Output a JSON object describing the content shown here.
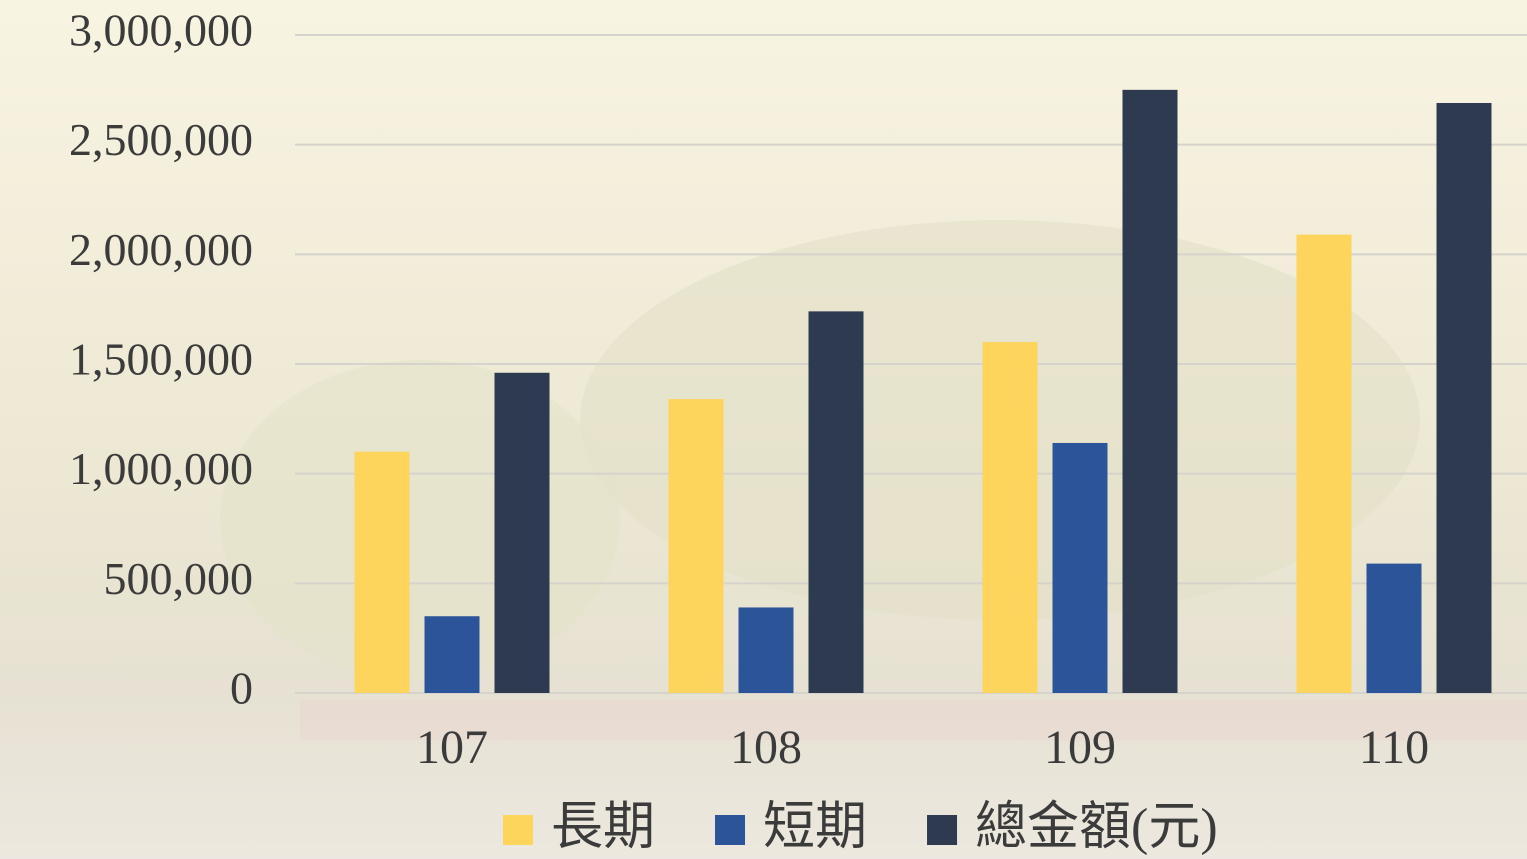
{
  "chart_data": {
    "type": "bar",
    "categories": [
      "107",
      "108",
      "109",
      "110"
    ],
    "series": [
      {
        "name": "長期",
        "color": "#fdd45c",
        "values": [
          1100000,
          1340000,
          1600000,
          2090000
        ]
      },
      {
        "name": "短期",
        "color": "#2c5499",
        "values": [
          350000,
          390000,
          1140000,
          590000
        ]
      },
      {
        "name": "總金額(元)",
        "color": "#2e3a50",
        "values": [
          1460000,
          1740000,
          2750000,
          2690000
        ]
      }
    ],
    "ylim": [
      0,
      3000000
    ],
    "yticks": [
      0,
      {
        "value": 500000,
        "label": "500,000"
      },
      {
        "value": 1000000,
        "label": "1,000,000"
      },
      {
        "value": 1500000,
        "label": "1,500,000"
      },
      {
        "value": 2000000,
        "label": "2,000,000"
      },
      {
        "value": 2500000,
        "label": "2,500,000"
      },
      {
        "value": 3000000,
        "label": "3,000,000"
      }
    ],
    "grid": true,
    "legend": "bottom"
  }
}
